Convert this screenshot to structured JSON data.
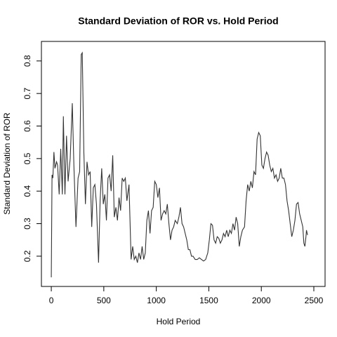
{
  "chart_data": {
    "type": "line",
    "title": "Standard Deviation of ROR vs. Hold Period",
    "x_label": "Hold Period",
    "y_label": "Standard Deviation of ROR",
    "color": "#333333",
    "xlim": [
      -94,
      2607
    ],
    "ylim": [
      0.107,
      0.86
    ],
    "xticks": [
      0,
      500,
      1000,
      1500,
      2000,
      2500
    ],
    "yticks": [
      0.2,
      0.3,
      0.4,
      0.5,
      0.6,
      0.7,
      0.8
    ],
    "x": [
      0,
      7,
      15,
      25,
      35,
      50,
      60,
      75,
      90,
      105,
      115,
      130,
      145,
      160,
      180,
      200,
      215,
      235,
      255,
      270,
      285,
      295,
      310,
      325,
      340,
      355,
      370,
      385,
      400,
      415,
      430,
      450,
      465,
      480,
      495,
      510,
      525,
      540,
      555,
      570,
      585,
      600,
      615,
      630,
      645,
      660,
      675,
      690,
      705,
      720,
      740,
      760,
      775,
      790,
      805,
      820,
      835,
      850,
      865,
      880,
      895,
      910,
      925,
      940,
      955,
      970,
      985,
      1000,
      1015,
      1030,
      1045,
      1060,
      1075,
      1090,
      1105,
      1120,
      1135,
      1150,
      1165,
      1180,
      1200,
      1215,
      1230,
      1245,
      1260,
      1275,
      1290,
      1305,
      1320,
      1335,
      1350,
      1370,
      1390,
      1410,
      1430,
      1450,
      1470,
      1490,
      1505,
      1520,
      1535,
      1550,
      1565,
      1580,
      1595,
      1610,
      1625,
      1640,
      1655,
      1670,
      1685,
      1700,
      1715,
      1730,
      1745,
      1760,
      1775,
      1790,
      1805,
      1820,
      1840,
      1855,
      1870,
      1885,
      1900,
      1915,
      1930,
      1945,
      1960,
      1975,
      1990,
      2005,
      2020,
      2035,
      2050,
      2065,
      2080,
      2095,
      2110,
      2125,
      2140,
      2155,
      2170,
      2185,
      2200,
      2215,
      2230,
      2245,
      2260,
      2275,
      2290,
      2305,
      2320,
      2335,
      2350,
      2365,
      2380,
      2395,
      2405,
      2415,
      2425,
      2430,
      2440
    ],
    "values": [
      0.135,
      0.45,
      0.44,
      0.52,
      0.47,
      0.49,
      0.48,
      0.39,
      0.53,
      0.39,
      0.63,
      0.39,
      0.57,
      0.43,
      0.5,
      0.67,
      0.48,
      0.29,
      0.44,
      0.46,
      0.82,
      0.825,
      0.52,
      0.36,
      0.49,
      0.45,
      0.46,
      0.29,
      0.41,
      0.42,
      0.36,
      0.18,
      0.37,
      0.47,
      0.36,
      0.39,
      0.31,
      0.44,
      0.45,
      0.4,
      0.51,
      0.32,
      0.35,
      0.31,
      0.38,
      0.34,
      0.44,
      0.43,
      0.44,
      0.37,
      0.42,
      0.19,
      0.23,
      0.19,
      0.2,
      0.18,
      0.21,
      0.19,
      0.23,
      0.19,
      0.21,
      0.31,
      0.34,
      0.27,
      0.34,
      0.35,
      0.43,
      0.42,
      0.38,
      0.41,
      0.31,
      0.33,
      0.34,
      0.33,
      0.36,
      0.3,
      0.25,
      0.28,
      0.29,
      0.31,
      0.3,
      0.32,
      0.35,
      0.3,
      0.29,
      0.27,
      0.25,
      0.22,
      0.22,
      0.2,
      0.2,
      0.19,
      0.19,
      0.195,
      0.19,
      0.185,
      0.19,
      0.21,
      0.25,
      0.3,
      0.295,
      0.25,
      0.24,
      0.26,
      0.255,
      0.24,
      0.25,
      0.27,
      0.26,
      0.28,
      0.26,
      0.28,
      0.27,
      0.3,
      0.28,
      0.32,
      0.3,
      0.23,
      0.26,
      0.28,
      0.29,
      0.37,
      0.42,
      0.4,
      0.43,
      0.41,
      0.46,
      0.45,
      0.56,
      0.58,
      0.57,
      0.48,
      0.47,
      0.5,
      0.52,
      0.51,
      0.48,
      0.46,
      0.47,
      0.44,
      0.45,
      0.43,
      0.44,
      0.47,
      0.44,
      0.44,
      0.42,
      0.37,
      0.34,
      0.3,
      0.26,
      0.28,
      0.31,
      0.36,
      0.365,
      0.33,
      0.31,
      0.29,
      0.24,
      0.23,
      0.26,
      0.28,
      0.265
    ]
  }
}
